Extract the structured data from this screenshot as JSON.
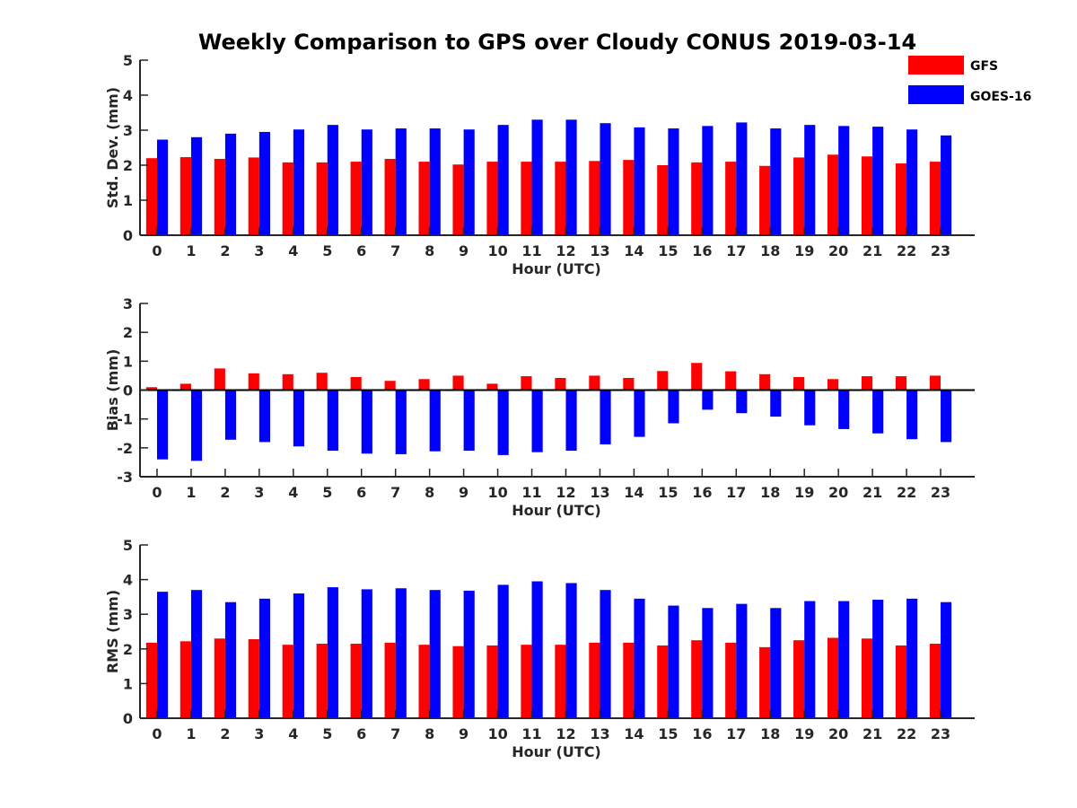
{
  "title": "Weekly Comparison to GPS over Cloudy CONUS 2019-03-14",
  "colors": {
    "GFS": "#ff0000",
    "GOES-16": "#0000ff"
  },
  "legend": {
    "items": [
      "GFS",
      "GOES-16"
    ],
    "placement": "top-right"
  },
  "chart_data": [
    {
      "type": "bar",
      "ylabel": "Std. Dev. (mm)",
      "xlabel": "Hour (UTC)",
      "ylim": [
        0,
        5
      ],
      "yticks": [
        0,
        1,
        2,
        3,
        4,
        5
      ],
      "categories": [
        "0",
        "1",
        "2",
        "3",
        "4",
        "5",
        "6",
        "7",
        "8",
        "9",
        "10",
        "11",
        "12",
        "13",
        "14",
        "15",
        "16",
        "17",
        "18",
        "19",
        "20",
        "21",
        "22",
        "23"
      ],
      "series": [
        {
          "name": "GFS",
          "values": [
            2.2,
            2.23,
            2.18,
            2.22,
            2.08,
            2.08,
            2.1,
            2.18,
            2.1,
            2.02,
            2.1,
            2.1,
            2.1,
            2.12,
            2.15,
            2.0,
            2.08,
            2.1,
            1.98,
            2.22,
            2.3,
            2.25,
            2.05,
            2.1
          ]
        },
        {
          "name": "GOES-16",
          "values": [
            2.73,
            2.8,
            2.9,
            2.95,
            3.02,
            3.15,
            3.02,
            3.05,
            3.05,
            3.02,
            3.15,
            3.3,
            3.3,
            3.2,
            3.08,
            3.05,
            3.12,
            3.22,
            3.05,
            3.15,
            3.12,
            3.1,
            3.02,
            2.85
          ]
        }
      ]
    },
    {
      "type": "bar",
      "ylabel": "Bias (mm)",
      "xlabel": "Hour (UTC)",
      "ylim": [
        -3,
        3
      ],
      "yticks": [
        -3,
        -2,
        -1,
        0,
        1,
        2,
        3
      ],
      "categories": [
        "0",
        "1",
        "2",
        "3",
        "4",
        "5",
        "6",
        "7",
        "8",
        "9",
        "10",
        "11",
        "12",
        "13",
        "14",
        "15",
        "16",
        "17",
        "18",
        "19",
        "20",
        "21",
        "22",
        "23"
      ],
      "series": [
        {
          "name": "GFS",
          "values": [
            0.1,
            0.22,
            0.75,
            0.58,
            0.55,
            0.6,
            0.45,
            0.32,
            0.38,
            0.5,
            0.22,
            0.48,
            0.42,
            0.5,
            0.42,
            0.66,
            0.94,
            0.65,
            0.55,
            0.45,
            0.38,
            0.48,
            0.48,
            0.5
          ]
        },
        {
          "name": "GOES-16",
          "values": [
            -2.4,
            -2.45,
            -1.72,
            -1.8,
            -1.95,
            -2.1,
            -2.2,
            -2.22,
            -2.12,
            -2.1,
            -2.25,
            -2.15,
            -2.1,
            -1.88,
            -1.62,
            -1.15,
            -0.68,
            -0.8,
            -0.92,
            -1.22,
            -1.35,
            -1.5,
            -1.7,
            -1.8
          ]
        }
      ]
    },
    {
      "type": "bar",
      "ylabel": "RMS (mm)",
      "xlabel": "Hour (UTC)",
      "ylim": [
        0,
        5
      ],
      "yticks": [
        0,
        1,
        2,
        3,
        4,
        5
      ],
      "categories": [
        "0",
        "1",
        "2",
        "3",
        "4",
        "5",
        "6",
        "7",
        "8",
        "9",
        "10",
        "11",
        "12",
        "13",
        "14",
        "15",
        "16",
        "17",
        "18",
        "19",
        "20",
        "21",
        "22",
        "23"
      ],
      "series": [
        {
          "name": "GFS",
          "values": [
            2.18,
            2.22,
            2.3,
            2.28,
            2.12,
            2.15,
            2.15,
            2.18,
            2.12,
            2.08,
            2.1,
            2.12,
            2.12,
            2.18,
            2.18,
            2.1,
            2.25,
            2.18,
            2.05,
            2.25,
            2.32,
            2.3,
            2.1,
            2.15
          ]
        },
        {
          "name": "GOES-16",
          "values": [
            3.65,
            3.7,
            3.35,
            3.45,
            3.6,
            3.78,
            3.72,
            3.75,
            3.7,
            3.68,
            3.85,
            3.95,
            3.9,
            3.7,
            3.45,
            3.25,
            3.18,
            3.3,
            3.18,
            3.38,
            3.38,
            3.42,
            3.45,
            3.35
          ]
        }
      ]
    }
  ]
}
